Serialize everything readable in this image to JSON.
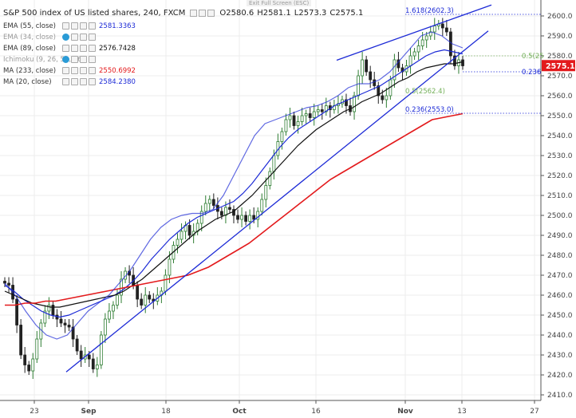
{
  "header": {
    "symbol_title": "S&P 500 index of US listed shares, 240, FXCM",
    "ohlc": [
      "O2580.6",
      "H2581.1",
      "L2573.3",
      "C2575.1"
    ],
    "exit_fullscreen": "Exit Full Screen (ESC)"
  },
  "indicators": [
    {
      "label": "EMA (55, close)",
      "value": "2581.3363",
      "color": "#1c2ad6",
      "muted": false
    },
    {
      "label": "EMA (34, close)",
      "value": "",
      "color": "#7b7bd6",
      "muted": true
    },
    {
      "label": "EMA (89, close)",
      "value": "2576.7428",
      "color": "#111111",
      "muted": false
    },
    {
      "label": "Ichimoku (9, 26, 52, 26)",
      "value": "",
      "color": "#999999",
      "muted": true
    },
    {
      "label": "MA (233, close)",
      "value": "2550.6992",
      "color": "#e31a1c",
      "muted": false
    },
    {
      "label": "MA (20, close)",
      "value": "2584.2380",
      "color": "#1c2ad6",
      "muted": false
    }
  ],
  "price_axis": {
    "ticks": [
      "2600.0",
      "2590.0",
      "2580.0",
      "2570.0",
      "2560.0",
      "2550.0",
      "2540.0",
      "2530.0",
      "2520.0",
      "2510.0",
      "2500.0",
      "2490.0",
      "2480.0",
      "2470.0",
      "2460.0",
      "2450.0",
      "2440.0",
      "2430.0",
      "2420.0",
      "2410.0"
    ],
    "current_price": "2575.1",
    "current_price_color": "#e31a1c"
  },
  "date_axis": {
    "ticks": [
      {
        "label": "23",
        "bold": false
      },
      {
        "label": "Sep",
        "bold": true
      },
      {
        "label": "18",
        "bold": false
      },
      {
        "label": "Oct",
        "bold": true
      },
      {
        "label": "16",
        "bold": false
      },
      {
        "label": "Nov",
        "bold": true
      },
      {
        "label": "13",
        "bold": false
      },
      {
        "label": "27",
        "bold": false
      }
    ]
  },
  "fibonacci": [
    {
      "label": "1.618(2602.3)",
      "color": "#1c2ad6"
    },
    {
      "label": "0.5(2562.4)",
      "color": "#74b05a"
    },
    {
      "label": "0.236(2553.0)",
      "color": "#1c2ad6"
    },
    {
      "label": "0.5(25",
      "color": "#74b05a"
    },
    {
      "label": "0.236",
      "color": "#1c2ad6"
    }
  ],
  "chart_data": {
    "type": "line",
    "x_unit": "date",
    "y_range": [
      2406,
      2604
    ],
    "candles_close": [
      2466,
      2465,
      2458,
      2445,
      2430,
      2425,
      2422,
      2428,
      2438,
      2446,
      2452,
      2455,
      2450,
      2448,
      2446,
      2445,
      2444,
      2438,
      2432,
      2428,
      2430,
      2428,
      2423,
      2425,
      2440,
      2448,
      2452,
      2455,
      2460,
      2468,
      2472,
      2470,
      2465,
      2458,
      2455,
      2460,
      2458,
      2457,
      2460,
      2462,
      2470,
      2478,
      2485,
      2488,
      2492,
      2495,
      2490,
      2492,
      2496,
      2502,
      2506,
      2508,
      2505,
      2502,
      2500,
      2504,
      2503,
      2500,
      2498,
      2500,
      2497,
      2500,
      2498,
      2502,
      2508,
      2515,
      2522,
      2530,
      2537,
      2542,
      2548,
      2550,
      2545,
      2547,
      2550,
      2551,
      2549,
      2552,
      2553,
      2552,
      2555,
      2553,
      2555,
      2556,
      2558,
      2555,
      2552,
      2560,
      2570,
      2578,
      2572,
      2568,
      2565,
      2560,
      2558,
      2560,
      2568,
      2578,
      2574,
      2572,
      2575,
      2580,
      2582,
      2585,
      2588,
      2590,
      2592,
      2595,
      2596,
      2594,
      2592,
      2580,
      2575,
      2578,
      2575
    ],
    "series": [
      {
        "name": "EMA (55, close)",
        "color": "#1c2ad6",
        "values": [
          2465,
          2462,
          2458,
          2455,
          2452,
          2450,
          2449,
          2450,
          2452,
          2454,
          2456,
          2458,
          2460,
          2463,
          2467,
          2472,
          2478,
          2483,
          2488,
          2492,
          2496,
          2499,
          2501,
          2503,
          2505,
          2507,
          2511,
          2516,
          2522,
          2528,
          2534,
          2539,
          2543,
          2546,
          2549,
          2552,
          2555,
          2557,
          2559,
          2561,
          2563,
          2565,
          2568,
          2571,
          2574,
          2577,
          2580,
          2582,
          2583,
          2582,
          2581
        ]
      },
      {
        "name": "EMA (89, close)",
        "color": "#111111",
        "values": [
          2462,
          2460,
          2458,
          2456,
          2455,
          2454,
          2454,
          2455,
          2456,
          2457,
          2458,
          2459,
          2460,
          2462,
          2465,
          2468,
          2472,
          2476,
          2480,
          2484,
          2488,
          2492,
          2495,
          2498,
          2500,
          2502,
          2506,
          2510,
          2515,
          2520,
          2525,
          2530,
          2535,
          2539,
          2543,
          2546,
          2549,
          2552,
          2554,
          2557,
          2559,
          2561,
          2564,
          2567,
          2569,
          2572,
          2574,
          2575,
          2576,
          2576,
          2577
        ]
      },
      {
        "name": "MA (233, close)",
        "color": "#e31a1c",
        "values": [
          2455,
          2455,
          2456,
          2456,
          2457,
          2457,
          2458,
          2459,
          2460,
          2461,
          2462,
          2463,
          2464,
          2465,
          2466,
          2467,
          2468,
          2469,
          2470,
          2472,
          2474,
          2477,
          2480,
          2483,
          2486,
          2490,
          2494,
          2498,
          2502,
          2506,
          2510,
          2514,
          2518,
          2521,
          2524,
          2527,
          2530,
          2533,
          2536,
          2539,
          2542,
          2545,
          2548,
          2549,
          2550,
          2551
        ]
      },
      {
        "name": "MA (20, close)",
        "color": "#1c2ad6",
        "values": [
          2466,
          2460,
          2452,
          2445,
          2440,
          2438,
          2440,
          2446,
          2452,
          2456,
          2460,
          2466,
          2472,
          2480,
          2488,
          2494,
          2498,
          2500,
          2501,
          2501,
          2503,
          2510,
          2520,
          2530,
          2540,
          2546,
          2548,
          2550,
          2552,
          2554,
          2555,
          2557,
          2560,
          2564,
          2566,
          2566,
          2568,
          2572,
          2578,
          2584,
          2590,
          2592,
          2590,
          2586,
          2584
        ]
      }
    ]
  }
}
